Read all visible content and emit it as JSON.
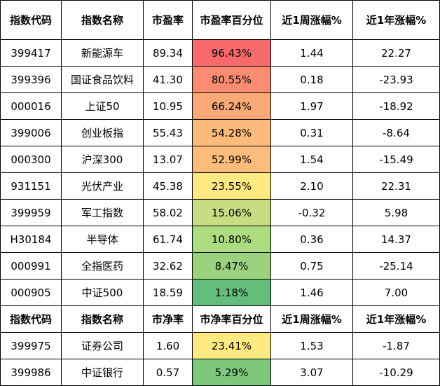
{
  "pe_header": [
    "指数代码",
    "指数名称",
    "市盈率",
    "市盈率百分位",
    "近1周涨幅%",
    "近1年涨幅%"
  ],
  "pe_rows": [
    {
      "code": "399417",
      "name": "新能源车",
      "ratio": "89.34",
      "pct": "96.43%",
      "week": "1.44",
      "year": "22.27",
      "color": "#f8696b"
    },
    {
      "code": "399396",
      "name": "国证食品饮料",
      "ratio": "41.30",
      "pct": "80.55%",
      "week": "0.18",
      "year": "-23.93",
      "color": "#fa8c72"
    },
    {
      "code": "000016",
      "name": "上证50",
      "ratio": "10.95",
      "pct": "66.24%",
      "week": "1.97",
      "year": "-18.92",
      "color": "#fbaa77"
    },
    {
      "code": "399006",
      "name": "创业板指",
      "ratio": "55.43",
      "pct": "54.28%",
      "week": "0.31",
      "year": "-8.64",
      "color": "#fcbb7b"
    },
    {
      "code": "000300",
      "name": "沪深300",
      "ratio": "13.07",
      "pct": "52.99%",
      "week": "1.54",
      "year": "-15.49",
      "color": "#fcbc7b"
    },
    {
      "code": "931151",
      "name": "光伏产业",
      "ratio": "45.38",
      "pct": "23.55%",
      "week": "2.10",
      "year": "22.31",
      "color": "#fee983"
    },
    {
      "code": "399959",
      "name": "军工指数",
      "ratio": "58.02",
      "pct": "15.06%",
      "week": "-0.32",
      "year": "5.98",
      "color": "#c8dd82"
    },
    {
      "code": "H30184",
      "name": "半导体",
      "ratio": "61.74",
      "pct": "10.80%",
      "week": "0.36",
      "year": "14.37",
      "color": "#addb80"
    },
    {
      "code": "000991",
      "name": "全指医药",
      "ratio": "32.62",
      "pct": "8.47%",
      "week": "0.75",
      "year": "-25.14",
      "color": "#9bd27e"
    },
    {
      "code": "000905",
      "name": "中证500",
      "ratio": "18.59",
      "pct": "1.18%",
      "week": "1.46",
      "year": "7.00",
      "color": "#63be7b"
    }
  ],
  "pb_header": [
    "指数代码",
    "指数名称",
    "市净率",
    "市净率百分位",
    "近1周涨幅%",
    "近1年涨幅%"
  ],
  "pb_rows": [
    {
      "code": "399975",
      "name": "证券公司",
      "ratio": "1.60",
      "pct": "23.41%",
      "week": "1.53",
      "year": "-1.87",
      "color": "#fee983"
    },
    {
      "code": "399986",
      "name": "中证银行",
      "ratio": "0.57",
      "pct": "5.29%",
      "week": "3.07",
      "year": "-10.29",
      "color": "#7ec87c"
    }
  ]
}
